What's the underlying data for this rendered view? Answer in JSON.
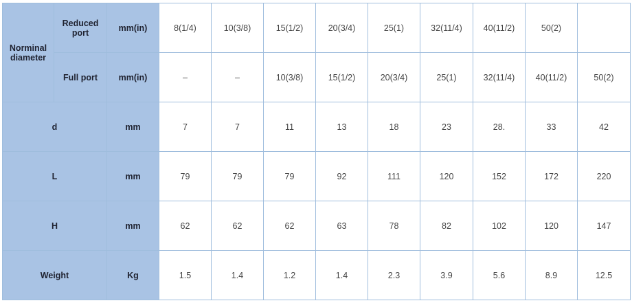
{
  "header": {
    "nominal_diameter": "Norminal diameter",
    "reduced_port": "Reduced port",
    "full_port": "Full port",
    "unit_mm_in": "mm(in)"
  },
  "reduced_port_values": [
    "8(1/4)",
    "10(3/8)",
    "15(1/2)",
    "20(3/4)",
    "25(1)",
    "32(11/4)",
    "40(11/2)",
    "50(2)",
    ""
  ],
  "full_port_values": [
    "–",
    "–",
    "10(3/8)",
    "15(1/2)",
    "20(3/4)",
    "25(1)",
    "32(11/4)",
    "40(11/2)",
    "50(2)"
  ],
  "rows": [
    {
      "label": "d",
      "unit": "mm",
      "values": [
        "7",
        "7",
        "11",
        "13",
        "18",
        "23",
        "28.",
        "33",
        "42"
      ]
    },
    {
      "label": "L",
      "unit": "mm",
      "values": [
        "79",
        "79",
        "79",
        "92",
        "111",
        "120",
        "152",
        "172",
        "220"
      ]
    },
    {
      "label": "H",
      "unit": "mm",
      "values": [
        "62",
        "62",
        "62",
        "63",
        "78",
        "82",
        "102",
        "120",
        "147"
      ]
    },
    {
      "label": "Weight",
      "unit": "Kg",
      "values": [
        "1.5",
        "1.4",
        "1.2",
        "1.4",
        "2.3",
        "3.9",
        "5.6",
        "8.9",
        "12.5"
      ]
    }
  ]
}
